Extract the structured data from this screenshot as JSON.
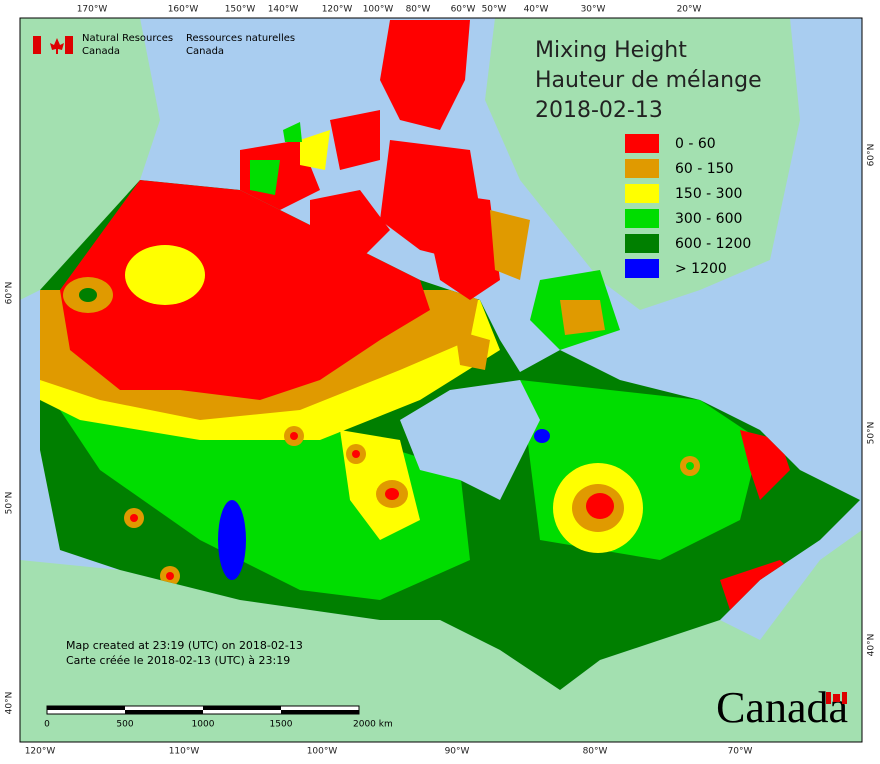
{
  "header": {
    "agency_en": "Natural Resources",
    "agency_en_country": "Canada",
    "agency_fr": "Ressources naturelles",
    "agency_fr_country": "Canada"
  },
  "title": {
    "en": "Mixing Height",
    "fr": "Hauteur de mélange",
    "date": "2018-02-13"
  },
  "legend": [
    {
      "label": "0 - 60",
      "color": "#ff0000"
    },
    {
      "label": "60 - 150",
      "color": "#e09a00"
    },
    {
      "label": "150 - 300",
      "color": "#ffff00"
    },
    {
      "label": "300 - 600",
      "color": "#00dd00"
    },
    {
      "label": "600 - 1200",
      "color": "#007f00"
    },
    {
      "label": "> 1200",
      "color": "#0000ff"
    }
  ],
  "graticule": {
    "top": [
      "170°W",
      "160°W",
      "150°W",
      "140°W",
      "120°W",
      "100°W",
      "80°W",
      "60°W",
      "50°W",
      "40°W",
      "30°W",
      "20°W"
    ],
    "bottom": [
      "120°W",
      "110°W",
      "100°W",
      "90°W",
      "80°W",
      "70°W"
    ],
    "left": [
      "60°N",
      "50°N",
      "40°N"
    ],
    "right": [
      "60°N",
      "50°N",
      "40°N"
    ]
  },
  "notes": [
    "Map created at 23:19 (UTC) on 2018-02-13",
    "Carte créée le 2018-02-13 (UTC) à 23:19"
  ],
  "scale_bar": {
    "labels": [
      "0",
      "500",
      "1000",
      "1500",
      "2000 km"
    ]
  },
  "wordmark": "Canada"
}
